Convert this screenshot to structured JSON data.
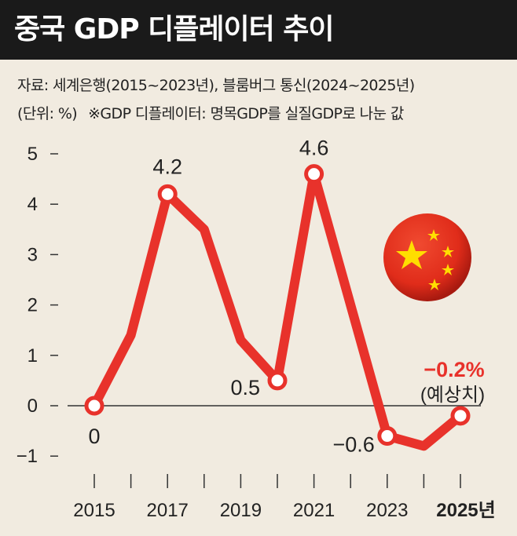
{
  "header": {
    "title": "중국 GDP 디플레이터 추이",
    "source": "자료: 세계은행(2015~2023년), 블룸버그 통신(2024~2025년)",
    "unit": "(단위: %)",
    "note": "※GDP 디플레이터: 명목GDP를 실질GDP로 나눈 값"
  },
  "chart_data": {
    "type": "line",
    "x": [
      2015,
      2016,
      2017,
      2018,
      2019,
      2020,
      2021,
      2022,
      2023,
      2024,
      2025
    ],
    "series": [
      {
        "values": [
          0,
          1.4,
          4.2,
          3.5,
          1.3,
          0.5,
          4.6,
          2.0,
          -0.6,
          -0.8,
          -0.2
        ]
      }
    ],
    "xticks": [
      "2015",
      "2017",
      "2019",
      "2021",
      "2023",
      "2025년"
    ],
    "ylim": [
      -1,
      5
    ],
    "yticks": [
      "-1",
      "0",
      "1",
      "2",
      "3",
      "4",
      "5"
    ],
    "grid": false,
    "colors": {
      "line": "#e8322b",
      "marker_fill": "#ffffff"
    },
    "point_labels": [
      {
        "x": 2015,
        "text": "0"
      },
      {
        "x": 2017,
        "text": "4.2"
      },
      {
        "x": 2020,
        "text": "0.5"
      },
      {
        "x": 2021,
        "text": "4.6"
      },
      {
        "x": 2023,
        "text": "−0.6"
      },
      {
        "x": 2025,
        "text": "−0.2%",
        "highlight": true
      }
    ],
    "forecast_label": "(예상치)",
    "decoration": "china-flag-icon"
  }
}
